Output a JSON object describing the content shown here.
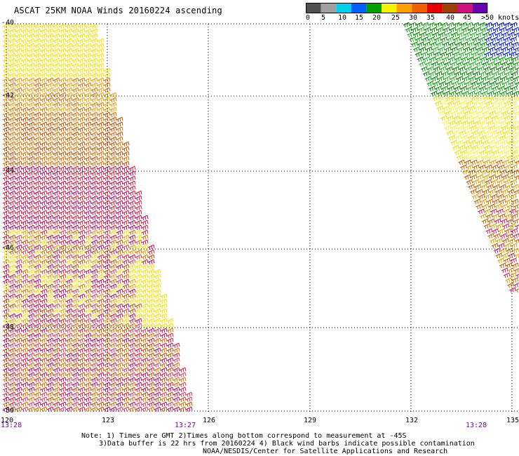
{
  "title": "ASCAT 25KM NOAA Winds 20160224 ascending",
  "color_scale": {
    "labels": [
      "0",
      "5",
      "10",
      "15",
      "20",
      "25",
      "30",
      "35",
      "40",
      "45",
      ">50",
      "knots"
    ],
    "colors": [
      "#505050",
      "#a0a0a0",
      "#00d0f0",
      "#0060ff",
      "#00a000",
      "#f8f000",
      "#ffa000",
      "#f06000",
      "#e80000",
      "#a04000",
      "#d01080",
      "#6a00b0"
    ]
  },
  "axes": {
    "lat_labels": [
      "-40",
      "-42",
      "-44",
      "-46",
      "-48",
      "-50"
    ],
    "lon_labels": [
      "120",
      "123",
      "126",
      "129",
      "132",
      "135"
    ]
  },
  "times": {
    "left": "13:28",
    "middle": "13:27",
    "right": "13:28"
  },
  "notes": {
    "line1": "Note: 1) Times are GMT 2)Times along bottom correspond to measurement at -45S",
    "line2": "3)Data buffer is 22 hrs from 20160224 4) Black wind barbs indicate possible contamination",
    "line3": "NOAA/NESDIS/Center for Satellite Applications and Research"
  }
}
